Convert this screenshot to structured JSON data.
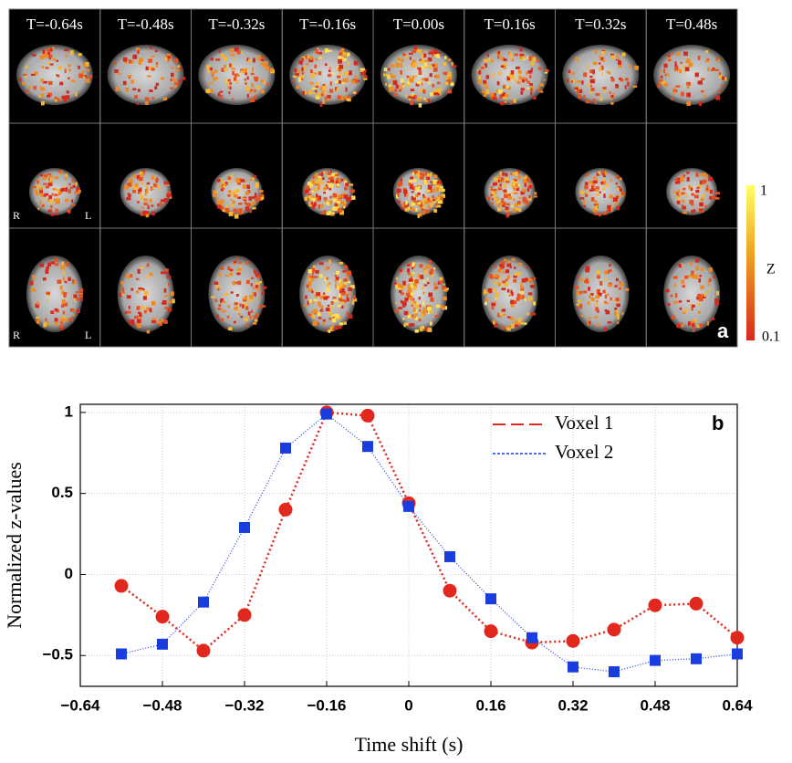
{
  "panel_a": {
    "time_labels": [
      "T=-0.64s",
      "T=-0.48s",
      "T=-0.32s",
      "T=-0.16s",
      "T=0.00s",
      "T=0.16s",
      "T=0.32s",
      "T=0.48s"
    ],
    "side_labels": {
      "right": "R",
      "left": "L"
    },
    "colorbar": {
      "max": 1,
      "title": "Z",
      "min": 0.1
    },
    "panel_label": "a"
  },
  "chart_data": {
    "type": "line",
    "panel_label": "b",
    "xlabel": "Time shift (s)",
    "ylabel": "Normalized z-values",
    "x": [
      -0.56,
      -0.48,
      -0.4,
      -0.32,
      -0.24,
      -0.16,
      -0.08,
      0,
      0.08,
      0.16,
      0.24,
      0.32,
      0.4,
      0.48,
      0.56,
      0.64
    ],
    "series": [
      {
        "name": "Voxel 1",
        "color": "#e0281e",
        "marker": "circle",
        "values": [
          -0.07,
          -0.26,
          -0.47,
          -0.25,
          0.4,
          1.0,
          0.98,
          0.44,
          -0.1,
          -0.35,
          -0.42,
          -0.41,
          -0.34,
          -0.19,
          -0.18,
          -0.39
        ]
      },
      {
        "name": "Voxel 2",
        "color": "#1a3de0",
        "marker": "square",
        "values": [
          -0.49,
          -0.43,
          -0.17,
          0.29,
          0.78,
          0.99,
          0.79,
          0.42,
          0.11,
          -0.15,
          -0.39,
          -0.57,
          -0.6,
          -0.53,
          -0.52,
          -0.49
        ]
      }
    ],
    "xlim": [
      -0.64,
      0.64
    ],
    "xticks": [
      {
        "value": -0.64,
        "label": "−0.64"
      },
      {
        "value": -0.48,
        "label": "−0.48"
      },
      {
        "value": -0.32,
        "label": "−0.32"
      },
      {
        "value": -0.16,
        "label": "−0.16"
      },
      0,
      0.16,
      0.32,
      0.48,
      0.64
    ],
    "ylim": [
      -0.69,
      1.05
    ],
    "yticks": [
      {
        "value": -0.5,
        "label": "−0.5"
      },
      0,
      0.5,
      1
    ],
    "grid": true,
    "legend": "upper right"
  }
}
